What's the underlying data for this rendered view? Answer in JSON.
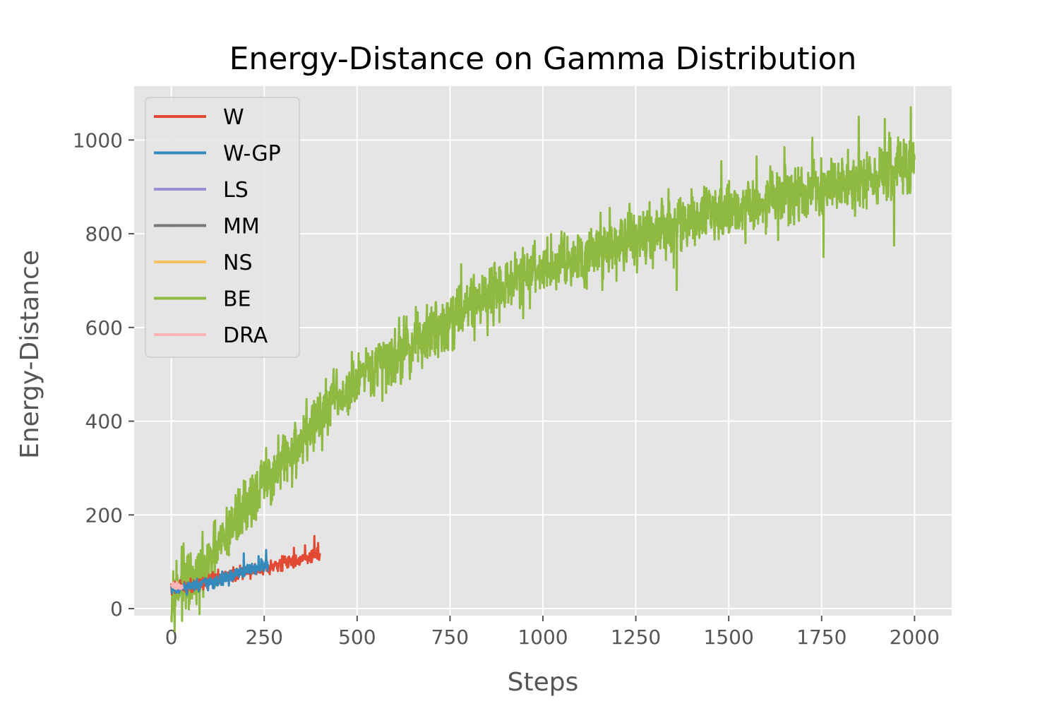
{
  "chart_data": {
    "type": "line",
    "title": "Energy-Distance on Gamma Distribution",
    "xlabel": "Steps",
    "ylabel": "Energy-Distance",
    "xlim": [
      -100,
      2100
    ],
    "ylim": [
      -15,
      1115
    ],
    "x_ticks": [
      0,
      250,
      500,
      750,
      1000,
      1250,
      1500,
      1750,
      2000
    ],
    "y_ticks": [
      0,
      200,
      400,
      600,
      800,
      1000
    ],
    "grid": true,
    "legend_position": "upper-left",
    "background": "#e5e5e5",
    "series": [
      {
        "name": "W",
        "color": "#e24a33",
        "x_end": 400,
        "points": [
          [
            0,
            44
          ],
          [
            40,
            47
          ],
          [
            80,
            55
          ],
          [
            120,
            63
          ],
          [
            160,
            72
          ],
          [
            200,
            80
          ],
          [
            240,
            86
          ],
          [
            280,
            94
          ],
          [
            320,
            101
          ],
          [
            360,
            107
          ],
          [
            400,
            116
          ]
        ],
        "noise": 7,
        "spikes": [
          [
            385,
            155
          ],
          [
            395,
            140
          ],
          [
            360,
            135
          ],
          [
            330,
            130
          ]
        ]
      },
      {
        "name": "W-GP",
        "color": "#348abd",
        "x_end": 260,
        "points": [
          [
            0,
            43
          ],
          [
            40,
            44
          ],
          [
            80,
            50
          ],
          [
            120,
            58
          ],
          [
            160,
            68
          ],
          [
            200,
            80
          ],
          [
            230,
            85
          ],
          [
            260,
            95
          ]
        ],
        "noise": 7,
        "spikes": [
          [
            195,
            118
          ],
          [
            255,
            125
          ],
          [
            235,
            112
          ]
        ]
      },
      {
        "name": "LS",
        "color": "#988ed5",
        "x_end": 0,
        "points": [],
        "noise": 0,
        "spikes": []
      },
      {
        "name": "MM",
        "color": "#777777",
        "x_end": 0,
        "points": [],
        "noise": 0,
        "spikes": []
      },
      {
        "name": "NS",
        "color": "#fbc15e",
        "x_end": 0,
        "points": [],
        "noise": 0,
        "spikes": []
      },
      {
        "name": "BE",
        "color": "#8eba42",
        "x_end": 2000,
        "points": [
          [
            0,
            40
          ],
          [
            25,
            55
          ],
          [
            60,
            50
          ],
          [
            100,
            90
          ],
          [
            150,
            160
          ],
          [
            200,
            220
          ],
          [
            250,
            265
          ],
          [
            300,
            310
          ],
          [
            350,
            360
          ],
          [
            400,
            410
          ],
          [
            450,
            445
          ],
          [
            500,
            480
          ],
          [
            600,
            540
          ],
          [
            700,
            590
          ],
          [
            800,
            650
          ],
          [
            900,
            690
          ],
          [
            1000,
            725
          ],
          [
            1100,
            755
          ],
          [
            1200,
            780
          ],
          [
            1300,
            800
          ],
          [
            1400,
            830
          ],
          [
            1500,
            855
          ],
          [
            1600,
            870
          ],
          [
            1700,
            885
          ],
          [
            1800,
            905
          ],
          [
            1900,
            925
          ],
          [
            2000,
            940
          ]
        ],
        "noise": 32,
        "spikes": [
          [
            445,
            510
          ],
          [
            560,
            565
          ],
          [
            665,
            605
          ],
          [
            780,
            735
          ],
          [
            900,
            730
          ],
          [
            1050,
            805
          ],
          [
            1155,
            845
          ],
          [
            1210,
            830
          ],
          [
            1320,
            875
          ],
          [
            1400,
            895
          ],
          [
            1480,
            955
          ],
          [
            1575,
            965
          ],
          [
            1650,
            985
          ],
          [
            1725,
            1005
          ],
          [
            1850,
            1050
          ],
          [
            1920,
            1045
          ],
          [
            1990,
            1070
          ],
          [
            670,
            555
          ],
          [
            1160,
            680
          ],
          [
            1360,
            680
          ],
          [
            1545,
            780
          ],
          [
            1755,
            750
          ],
          [
            1945,
            775
          ],
          [
            1600,
            800
          ],
          [
            450,
            440
          ]
        ]
      },
      {
        "name": "DRA",
        "color": "#ffb5b8",
        "x_end": 30,
        "points": [
          [
            0,
            48
          ],
          [
            15,
            50
          ],
          [
            30,
            46
          ]
        ],
        "noise": 4,
        "spikes": []
      }
    ]
  }
}
